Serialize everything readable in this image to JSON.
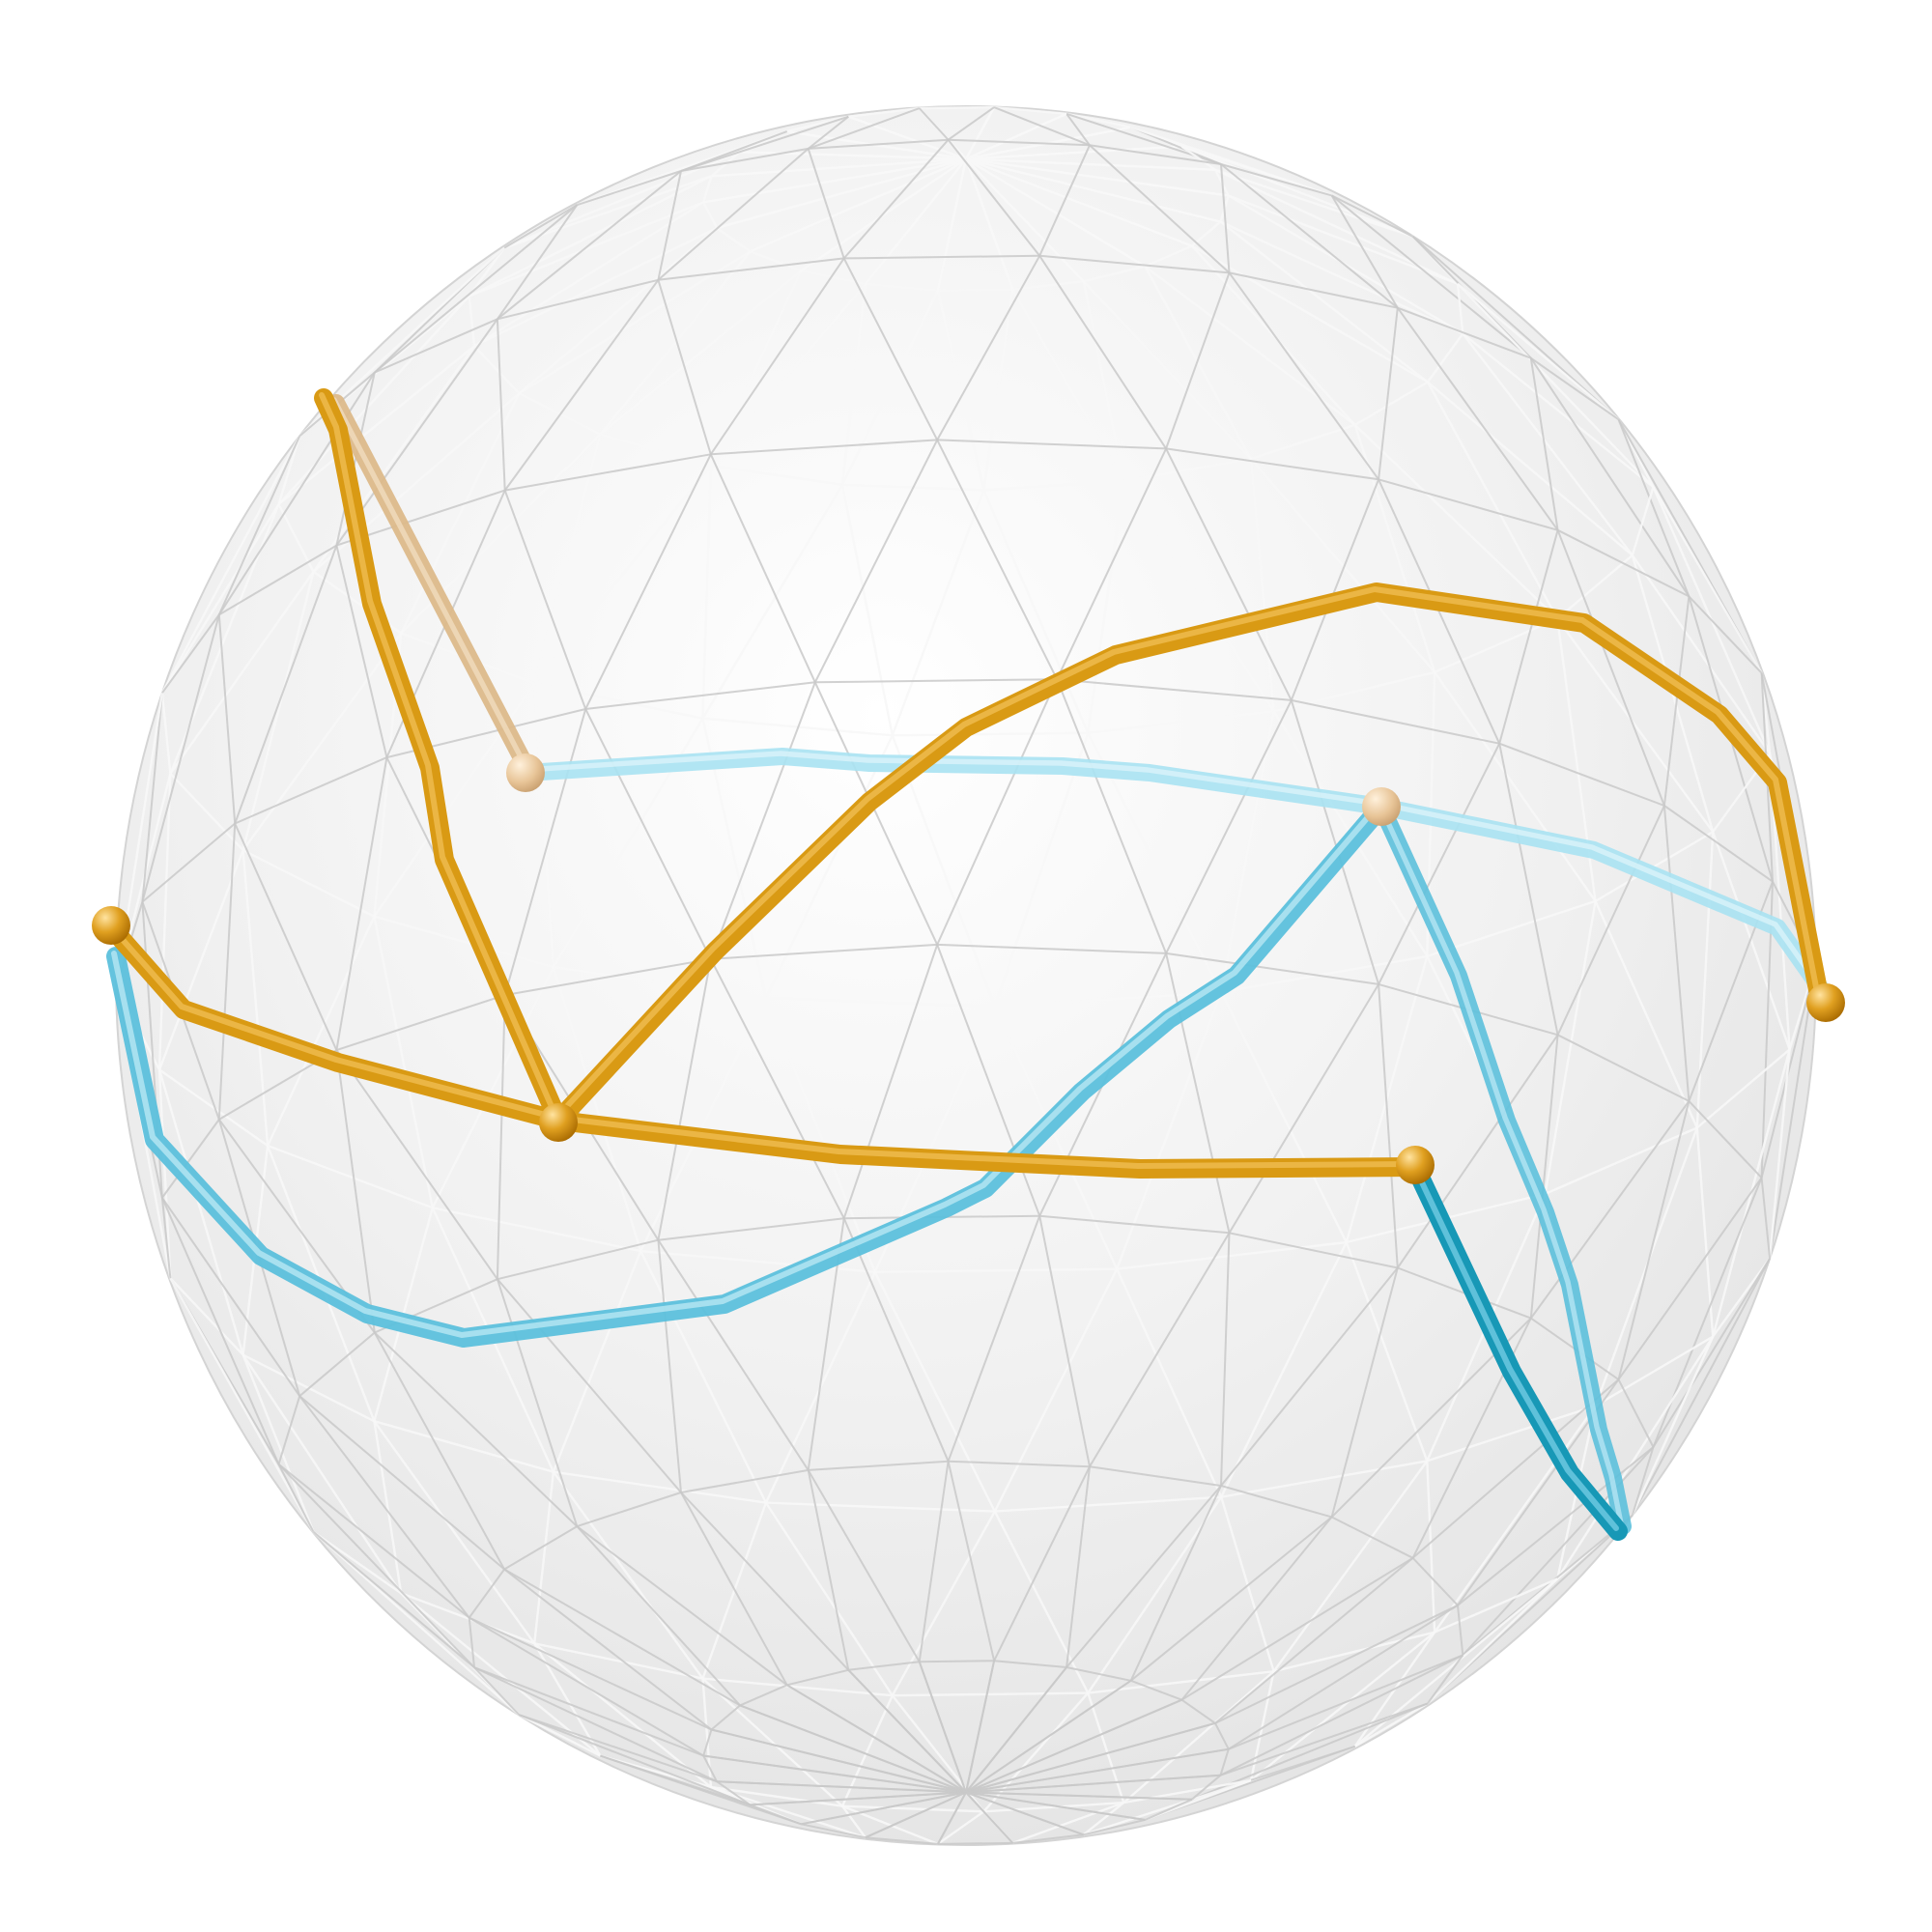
{
  "figure": {
    "description_visible_text": "",
    "colors": {
      "background": "#ffffff",
      "sphere_fill": "#ececec",
      "sphere_highlight": "#ffffff",
      "mesh_line": "#c9c9c9",
      "mesh_line_light": "#f7f7f7",
      "orange_path": "#d99a14",
      "orange_path_highlight": "#f2c25a",
      "orange_path_faded": "#dcb98a",
      "blue_path": "#5cc0dc",
      "blue_path_light": "#a8e2f2",
      "blue_path_dark": "#1798b6",
      "node_orange": "#e0a020",
      "node_faded": "#e8c598"
    },
    "mesh": {
      "type": "geodesic-polyhedron",
      "latitude_rings": 9,
      "longitude_segments": 22
    },
    "paths": [
      {
        "name": "orange-path-upper-arc",
        "color": "orange"
      },
      {
        "name": "orange-path-lower-arc",
        "color": "orange"
      },
      {
        "name": "orange-path-left-zigzag",
        "color": "orange"
      },
      {
        "name": "blue-path-top-arc",
        "color": "blue"
      },
      {
        "name": "blue-path-lower-arc",
        "color": "blue"
      },
      {
        "name": "blue-path-right-drop",
        "color": "blue"
      }
    ],
    "nodes": [
      {
        "name": "node-left",
        "color": "orange"
      },
      {
        "name": "node-center-left",
        "color": "orange"
      },
      {
        "name": "node-center-right",
        "color": "orange"
      },
      {
        "name": "node-right",
        "color": "orange"
      },
      {
        "name": "node-top-left-faded",
        "color": "faded"
      },
      {
        "name": "node-top-right-faded",
        "color": "faded"
      }
    ]
  }
}
